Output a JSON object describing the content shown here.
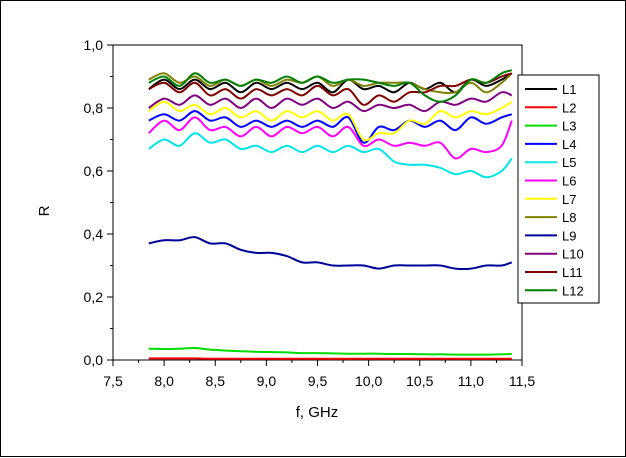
{
  "chart_data": {
    "type": "line",
    "title": "",
    "xlabel": "f, GHz",
    "ylabel": "R",
    "xlim": [
      7.5,
      11.5
    ],
    "ylim": [
      0.0,
      1.0
    ],
    "x_ticks": [
      "7,5",
      "8,0",
      "8,5",
      "9,0",
      "9,5",
      "10,0",
      "10,5",
      "11,0",
      "11,5"
    ],
    "y_ticks": [
      "0,0",
      "0,2",
      "0,4",
      "0,6",
      "0,8",
      "1,0"
    ],
    "grid": false,
    "legend_position": "right",
    "x": [
      7.85,
      8.0,
      8.15,
      8.3,
      8.45,
      8.6,
      8.75,
      8.9,
      9.05,
      9.2,
      9.35,
      9.5,
      9.65,
      9.8,
      9.95,
      10.1,
      10.25,
      10.4,
      10.55,
      10.7,
      10.85,
      11.0,
      11.15,
      11.3,
      11.4
    ],
    "series": [
      {
        "name": "L1",
        "color": "#000000",
        "values": [
          0.86,
          0.89,
          0.86,
          0.89,
          0.86,
          0.88,
          0.85,
          0.88,
          0.86,
          0.88,
          0.86,
          0.88,
          0.85,
          0.89,
          0.86,
          0.87,
          0.85,
          0.88,
          0.86,
          0.88,
          0.85,
          0.89,
          0.87,
          0.89,
          0.91
        ]
      },
      {
        "name": "L2",
        "color": "#ff0000",
        "values": [
          0.005,
          0.005,
          0.005,
          0.005,
          0.004,
          0.004,
          0.004,
          0.004,
          0.004,
          0.004,
          0.004,
          0.004,
          0.004,
          0.004,
          0.004,
          0.004,
          0.004,
          0.004,
          0.004,
          0.004,
          0.004,
          0.004,
          0.004,
          0.004,
          0.004
        ]
      },
      {
        "name": "L3",
        "color": "#00dd00",
        "values": [
          0.036,
          0.035,
          0.036,
          0.038,
          0.033,
          0.03,
          0.028,
          0.026,
          0.025,
          0.024,
          0.022,
          0.022,
          0.021,
          0.02,
          0.02,
          0.02,
          0.019,
          0.019,
          0.018,
          0.018,
          0.017,
          0.017,
          0.017,
          0.018,
          0.019
        ]
      },
      {
        "name": "L4",
        "color": "#0000ff",
        "values": [
          0.76,
          0.78,
          0.76,
          0.79,
          0.76,
          0.77,
          0.74,
          0.76,
          0.74,
          0.76,
          0.74,
          0.76,
          0.74,
          0.77,
          0.69,
          0.74,
          0.73,
          0.76,
          0.74,
          0.76,
          0.73,
          0.77,
          0.75,
          0.77,
          0.78
        ]
      },
      {
        "name": "L5",
        "color": "#00e5e5",
        "values": [
          0.67,
          0.7,
          0.68,
          0.72,
          0.69,
          0.7,
          0.67,
          0.68,
          0.66,
          0.68,
          0.66,
          0.68,
          0.66,
          0.68,
          0.66,
          0.67,
          0.63,
          0.62,
          0.62,
          0.61,
          0.59,
          0.6,
          0.58,
          0.6,
          0.64
        ]
      },
      {
        "name": "L6",
        "color": "#ff00ff",
        "values": [
          0.72,
          0.76,
          0.73,
          0.77,
          0.73,
          0.74,
          0.71,
          0.74,
          0.71,
          0.74,
          0.72,
          0.74,
          0.71,
          0.74,
          0.68,
          0.7,
          0.68,
          0.69,
          0.68,
          0.69,
          0.64,
          0.67,
          0.66,
          0.68,
          0.76
        ]
      },
      {
        "name": "L7",
        "color": "#ffff00",
        "values": [
          0.79,
          0.82,
          0.79,
          0.81,
          0.78,
          0.8,
          0.77,
          0.79,
          0.76,
          0.79,
          0.77,
          0.79,
          0.76,
          0.78,
          0.7,
          0.72,
          0.72,
          0.76,
          0.75,
          0.79,
          0.77,
          0.79,
          0.78,
          0.8,
          0.82
        ]
      },
      {
        "name": "L8",
        "color": "#808000",
        "values": [
          0.89,
          0.91,
          0.88,
          0.9,
          0.87,
          0.89,
          0.87,
          0.89,
          0.87,
          0.89,
          0.88,
          0.9,
          0.87,
          0.89,
          0.87,
          0.88,
          0.88,
          0.88,
          0.86,
          0.85,
          0.85,
          0.88,
          0.85,
          0.88,
          0.91
        ]
      },
      {
        "name": "L9",
        "color": "#000099",
        "values": [
          0.37,
          0.38,
          0.38,
          0.39,
          0.37,
          0.37,
          0.35,
          0.34,
          0.34,
          0.33,
          0.31,
          0.31,
          0.3,
          0.3,
          0.3,
          0.29,
          0.3,
          0.3,
          0.3,
          0.3,
          0.29,
          0.29,
          0.3,
          0.3,
          0.31
        ]
      },
      {
        "name": "L10",
        "color": "#800080",
        "values": [
          0.8,
          0.83,
          0.81,
          0.84,
          0.81,
          0.83,
          0.8,
          0.83,
          0.8,
          0.83,
          0.81,
          0.83,
          0.8,
          0.82,
          0.79,
          0.81,
          0.8,
          0.81,
          0.79,
          0.82,
          0.81,
          0.83,
          0.82,
          0.85,
          0.84
        ]
      },
      {
        "name": "L11",
        "color": "#800000",
        "values": [
          0.86,
          0.88,
          0.85,
          0.88,
          0.84,
          0.86,
          0.83,
          0.86,
          0.84,
          0.86,
          0.84,
          0.87,
          0.84,
          0.86,
          0.81,
          0.84,
          0.82,
          0.85,
          0.85,
          0.87,
          0.87,
          0.89,
          0.88,
          0.9,
          0.91
        ]
      },
      {
        "name": "L12",
        "color": "#008000",
        "values": [
          0.88,
          0.9,
          0.87,
          0.91,
          0.88,
          0.89,
          0.87,
          0.89,
          0.88,
          0.9,
          0.88,
          0.9,
          0.88,
          0.89,
          0.89,
          0.88,
          0.87,
          0.88,
          0.84,
          0.82,
          0.84,
          0.89,
          0.88,
          0.91,
          0.92
        ]
      }
    ]
  }
}
